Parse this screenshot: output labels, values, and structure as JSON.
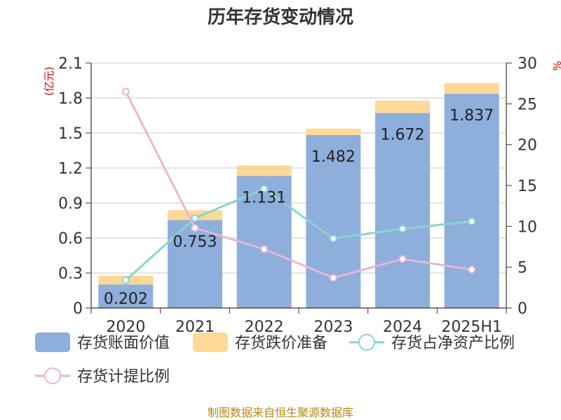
{
  "chart_data": {
    "type": "bar",
    "title": "历年存货变动情况",
    "categories": [
      "2020",
      "2021",
      "2022",
      "2023",
      "2024",
      "2025H1"
    ],
    "y_left": {
      "unit": "(亿元)",
      "ylim": [
        0,
        2.1
      ],
      "ticks": [
        "0",
        "0.3",
        "0.6",
        "0.9",
        "1.2",
        "1.5",
        "1.8",
        "2.1"
      ]
    },
    "y_right": {
      "unit": "%",
      "ylim": [
        0,
        30
      ],
      "ticks": [
        "0",
        "5",
        "10",
        "15",
        "20",
        "25",
        "30"
      ]
    },
    "series": [
      {
        "name": "存货账面价值",
        "type": "bar",
        "axis": "left",
        "stack": "inv",
        "color": "#8eaedb",
        "values": [
          0.202,
          0.753,
          1.131,
          1.482,
          1.672,
          1.837
        ],
        "labels": [
          "0.202",
          "0.753",
          "1.131",
          "1.482",
          "1.672",
          "1.837"
        ]
      },
      {
        "name": "存货跌价准备",
        "type": "bar",
        "axis": "left",
        "stack": "inv",
        "color": "#fdd896",
        "values": [
          0.075,
          0.085,
          0.09,
          0.055,
          0.105,
          0.09
        ]
      },
      {
        "name": "存货占净资产比例",
        "type": "line",
        "axis": "right",
        "color": "#86d5d3",
        "values": [
          3.4,
          11.0,
          14.6,
          8.5,
          9.7,
          10.6
        ]
      },
      {
        "name": "存货计提比例",
        "type": "line",
        "axis": "right",
        "color": "#e3b7d8",
        "values": [
          26.5,
          9.8,
          7.2,
          3.7,
          6.0,
          4.7
        ]
      }
    ],
    "grid": true,
    "legend_position": "bottom"
  },
  "source_note": "制图数据来自恒生聚源数据库"
}
